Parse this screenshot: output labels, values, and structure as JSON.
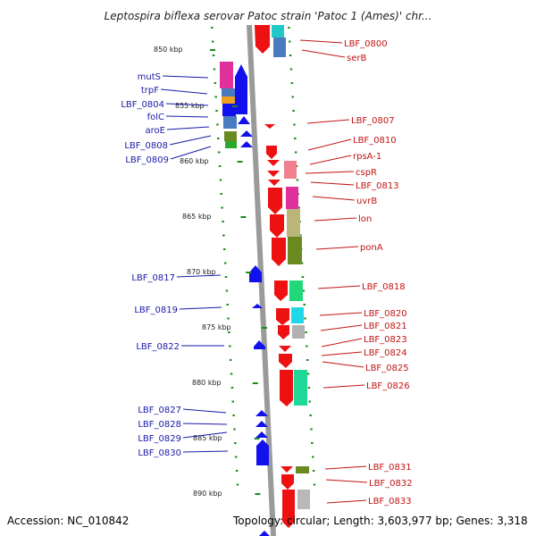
{
  "title": "Leptospira biflexa serovar Patoc strain 'Patoc 1 (Ames)' chr...",
  "footer": {
    "accession": "Accession: NC_010842",
    "topology": "Topology: circular; Length: 3,603,977 bp; Genes: 3,318"
  },
  "colors": {
    "forward": "#ee1111",
    "reverse": "#1111ee",
    "backbone": "#9a9a9a",
    "tick": "#1e8a1e",
    "left_label": "#1a1aa8",
    "right_label": "#c21414"
  },
  "kbp_marks": [
    "850 kbp",
    "855 kbp",
    "860 kbp",
    "865 kbp",
    "870 kbp",
    "875 kbp",
    "880 kbp",
    "885 kbp",
    "890 kbp"
  ],
  "left_labels": [
    "mutS",
    "trpF",
    "LBF_0804",
    "folC",
    "aroE",
    "LBF_0808",
    "LBF_0809",
    "LBF_0817",
    "LBF_0819",
    "LBF_0822",
    "LBF_0827",
    "LBF_0828",
    "LBF_0829",
    "LBF_0830"
  ],
  "right_labels": [
    "LBF_0800",
    "serB",
    "LBF_0807",
    "LBF_0810",
    "rpsA-1",
    "cspR",
    "LBF_0813",
    "uvrB",
    "lon",
    "ponA",
    "LBF_0818",
    "LBF_0820",
    "LBF_0821",
    "LBF_0823",
    "LBF_0824",
    "LBF_0825",
    "LBF_0826",
    "LBF_0831",
    "LBF_0832",
    "LBF_0833"
  ]
}
